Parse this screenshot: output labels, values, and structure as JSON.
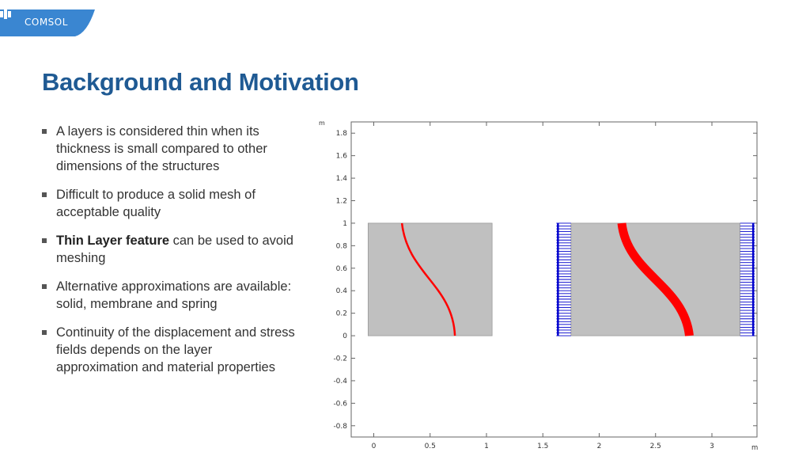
{
  "logo": {
    "text": "COMSOL"
  },
  "title": "Background and Motivation",
  "bullets": [
    {
      "bold": "",
      "text": "A layers is considered thin when its thickness is small compared to other dimensions of the structures"
    },
    {
      "bold": "",
      "text": "Difficult to produce a solid mesh of acceptable quality"
    },
    {
      "bold": "Thin Layer feature",
      "text": " can be used to avoid meshing"
    },
    {
      "bold": "",
      "text": "Alternative approximations are available: solid, membrane and spring"
    },
    {
      "bold": "",
      "text": "Continuity of the displacement and stress fields depends on the layer approximation and material properties"
    }
  ],
  "plot": {
    "x_unit": "m",
    "y_unit": "m",
    "xlim": [
      -0.2,
      3.4
    ],
    "ylim": [
      -0.9,
      1.9
    ],
    "x_ticks": [
      "0",
      "0.5",
      "1",
      "1.5",
      "2",
      "2.5",
      "3"
    ],
    "y_ticks": [
      "1.8",
      "1.6",
      "1.4",
      "1.2",
      "1",
      "0.8",
      "0.6",
      "0.4",
      "0.2",
      "0",
      "-0.2",
      "-0.4",
      "-0.6",
      "-0.8"
    ],
    "colors": {
      "domain": "#c0c0c0",
      "layer": "#ff0000",
      "load_arrows": "#0000cc"
    },
    "left_block": {
      "x": [
        -0.05,
        1.05
      ],
      "y": [
        0,
        1
      ]
    },
    "right_block": {
      "x": [
        1.75,
        3.25
      ],
      "y": [
        0,
        1
      ]
    },
    "left_loads_x": [
      1.62,
      1.75
    ],
    "right_loads_x": [
      3.25,
      3.38
    ]
  }
}
